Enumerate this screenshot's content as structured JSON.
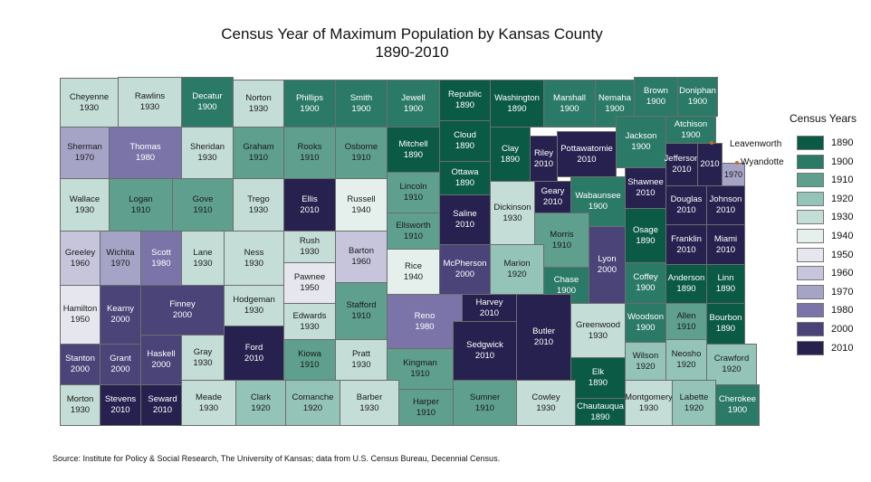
{
  "title": "Census Year of Maximum Population by Kansas County",
  "subtitle": "1890-2010",
  "legend": {
    "title": "Census Years",
    "items": [
      {
        "year": "1890",
        "color": "#0b5a46"
      },
      {
        "year": "1900",
        "color": "#2b7a67"
      },
      {
        "year": "1910",
        "color": "#5e9f8d"
      },
      {
        "year": "1920",
        "color": "#93c4b7"
      },
      {
        "year": "1930",
        "color": "#c4ddd6"
      },
      {
        "year": "1940",
        "color": "#e5f0ed"
      },
      {
        "year": "1950",
        "color": "#e6e6ef"
      },
      {
        "year": "1960",
        "color": "#c6c5dc"
      },
      {
        "year": "1970",
        "color": "#a6a4c6"
      },
      {
        "year": "1980",
        "color": "#7a74a8"
      },
      {
        "year": "2000",
        "color": "#4a4478"
      },
      {
        "year": "2010",
        "color": "#27214f"
      }
    ]
  },
  "counties": [
    {
      "name": "Cheyenne",
      "year": "1930"
    },
    {
      "name": "Rawlins",
      "year": "1930"
    },
    {
      "name": "Decatur",
      "year": "1900"
    },
    {
      "name": "Norton",
      "year": "1930"
    },
    {
      "name": "Phillips",
      "year": "1900"
    },
    {
      "name": "Smith",
      "year": "1900"
    },
    {
      "name": "Jewell",
      "year": "1900"
    },
    {
      "name": "Republic",
      "year": "1890"
    },
    {
      "name": "Washington",
      "year": "1890"
    },
    {
      "name": "Marshall",
      "year": "1900"
    },
    {
      "name": "Nemaha",
      "year": "1900"
    },
    {
      "name": "Brown",
      "year": "1900"
    },
    {
      "name": "Doniphan",
      "year": "1900"
    },
    {
      "name": "Sherman",
      "year": "1970"
    },
    {
      "name": "Thomas",
      "year": "1980"
    },
    {
      "name": "Sheridan",
      "year": "1930"
    },
    {
      "name": "Graham",
      "year": "1910"
    },
    {
      "name": "Rooks",
      "year": "1910"
    },
    {
      "name": "Osborne",
      "year": "1910"
    },
    {
      "name": "Mitchell",
      "year": "1890"
    },
    {
      "name": "Cloud",
      "year": "1890"
    },
    {
      "name": "Clay",
      "year": "1890"
    },
    {
      "name": "Riley",
      "year": "2010"
    },
    {
      "name": "Pottawatomie",
      "year": "2010"
    },
    {
      "name": "Jackson",
      "year": "1900"
    },
    {
      "name": "Atchison",
      "year": "1900"
    },
    {
      "name": "Jefferson",
      "year": "2010"
    },
    {
      "name": "Leavenworth",
      "year": "2010"
    },
    {
      "name": "Wyandotte",
      "year": "1970"
    },
    {
      "name": "Wallace",
      "year": "1930"
    },
    {
      "name": "Logan",
      "year": "1910"
    },
    {
      "name": "Gove",
      "year": "1910"
    },
    {
      "name": "Trego",
      "year": "1930"
    },
    {
      "name": "Ellis",
      "year": "2010"
    },
    {
      "name": "Russell",
      "year": "1940"
    },
    {
      "name": "Lincoln",
      "year": "1910"
    },
    {
      "name": "Ellsworth",
      "year": "1910"
    },
    {
      "name": "Ottawa",
      "year": "1890"
    },
    {
      "name": "Saline",
      "year": "2010"
    },
    {
      "name": "Dickinson",
      "year": "1930"
    },
    {
      "name": "Geary",
      "year": "2010"
    },
    {
      "name": "Wabaunsee",
      "year": "1900"
    },
    {
      "name": "Shawnee",
      "year": "2010"
    },
    {
      "name": "Douglas",
      "year": "2010"
    },
    {
      "name": "Johnson",
      "year": "2010"
    },
    {
      "name": "Morris",
      "year": "1910"
    },
    {
      "name": "Osage",
      "year": "1890"
    },
    {
      "name": "Franklin",
      "year": "2010"
    },
    {
      "name": "Miami",
      "year": "2010"
    },
    {
      "name": "Greeley",
      "year": "1960"
    },
    {
      "name": "Wichita",
      "year": "1970"
    },
    {
      "name": "Scott",
      "year": "1980"
    },
    {
      "name": "Lane",
      "year": "1930"
    },
    {
      "name": "Ness",
      "year": "1930"
    },
    {
      "name": "Rush",
      "year": "1930"
    },
    {
      "name": "Barton",
      "year": "1960"
    },
    {
      "name": "Rice",
      "year": "1940"
    },
    {
      "name": "McPherson",
      "year": "2000"
    },
    {
      "name": "Marion",
      "year": "1920"
    },
    {
      "name": "Chase",
      "year": "1900"
    },
    {
      "name": "Lyon",
      "year": "2000"
    },
    {
      "name": "Coffey",
      "year": "1900"
    },
    {
      "name": "Anderson",
      "year": "1890"
    },
    {
      "name": "Linn",
      "year": "1890"
    },
    {
      "name": "Hamilton",
      "year": "1950"
    },
    {
      "name": "Kearny",
      "year": "2000"
    },
    {
      "name": "Finney",
      "year": "2000"
    },
    {
      "name": "Hodgeman",
      "year": "1930"
    },
    {
      "name": "Pawnee",
      "year": "1950"
    },
    {
      "name": "Edwards",
      "year": "1930"
    },
    {
      "name": "Stafford",
      "year": "1910"
    },
    {
      "name": "Reno",
      "year": "1980"
    },
    {
      "name": "Harvey",
      "year": "2010"
    },
    {
      "name": "Butler",
      "year": "2010"
    },
    {
      "name": "Greenwood",
      "year": "1930"
    },
    {
      "name": "Woodson",
      "year": "1900"
    },
    {
      "name": "Allen",
      "year": "1910"
    },
    {
      "name": "Bourbon",
      "year": "1890"
    },
    {
      "name": "Stanton",
      "year": "2000"
    },
    {
      "name": "Grant",
      "year": "2000"
    },
    {
      "name": "Haskell",
      "year": "2000"
    },
    {
      "name": "Gray",
      "year": "1930"
    },
    {
      "name": "Ford",
      "year": "2010"
    },
    {
      "name": "Kiowa",
      "year": "1910"
    },
    {
      "name": "Pratt",
      "year": "1930"
    },
    {
      "name": "Kingman",
      "year": "1910"
    },
    {
      "name": "Sedgwick",
      "year": "2010"
    },
    {
      "name": "Wilson",
      "year": "1920"
    },
    {
      "name": "Neosho",
      "year": "1920"
    },
    {
      "name": "Crawford",
      "year": "1920"
    },
    {
      "name": "Elk",
      "year": "1890"
    },
    {
      "name": "Morton",
      "year": "1930"
    },
    {
      "name": "Stevens",
      "year": "2010"
    },
    {
      "name": "Seward",
      "year": "2010"
    },
    {
      "name": "Meade",
      "year": "1930"
    },
    {
      "name": "Clark",
      "year": "1920"
    },
    {
      "name": "Comanche",
      "year": "1920"
    },
    {
      "name": "Barber",
      "year": "1930"
    },
    {
      "name": "Harper",
      "year": "1910"
    },
    {
      "name": "Sumner",
      "year": "1910"
    },
    {
      "name": "Cowley",
      "year": "1930"
    },
    {
      "name": "Chautauqua",
      "year": "1890"
    },
    {
      "name": "Montgomery",
      "year": "1930"
    },
    {
      "name": "Labette",
      "year": "1920"
    },
    {
      "name": "Cherokee",
      "year": "1900"
    }
  ],
  "source": "Source: Institute for Policy & Social Research, The University of Kansas; data from U.S. Census Bureau, Decennial Census."
}
